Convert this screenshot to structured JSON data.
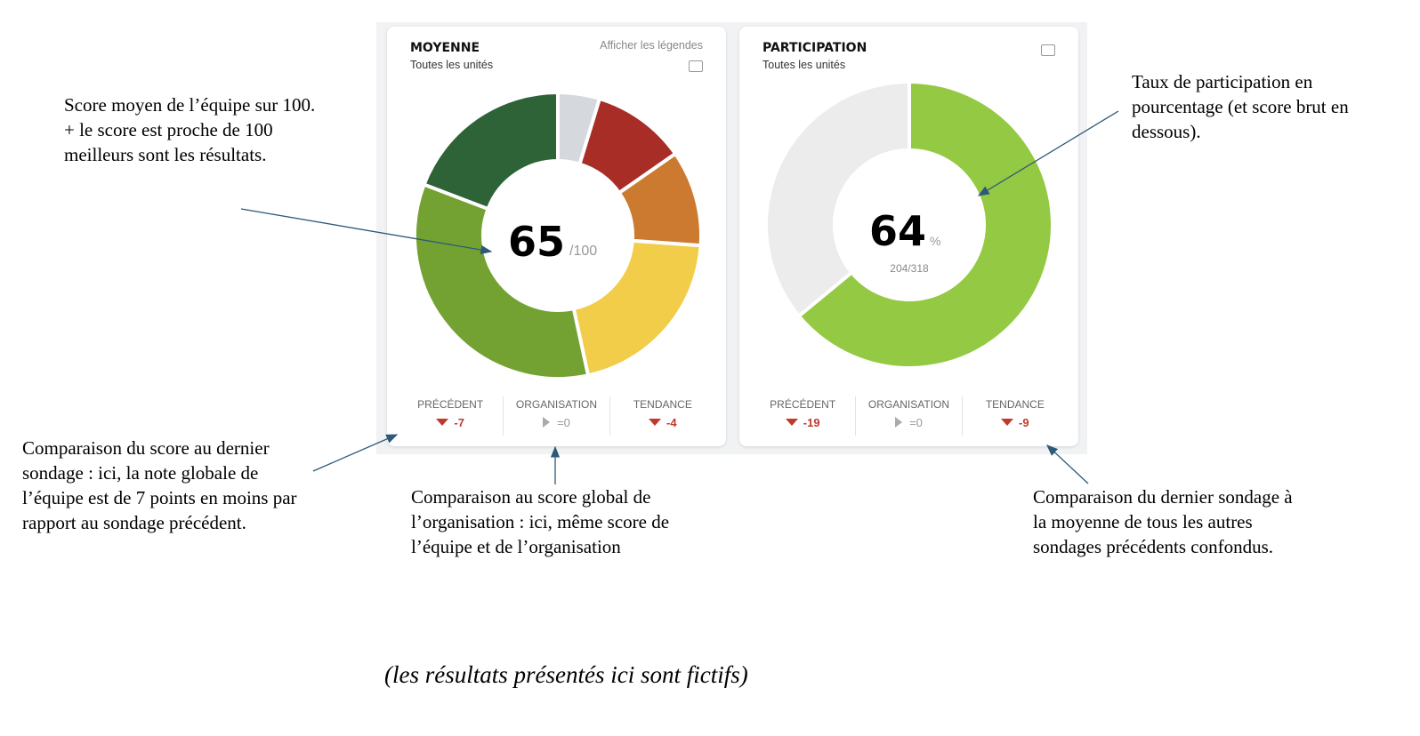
{
  "cards": [
    {
      "title": "MOYENNE",
      "subtitle": "Toutes les unités",
      "legend_link": "Afficher les légendes",
      "icon": "image-icon",
      "score": "65",
      "score_suffix": "/100",
      "stats": [
        {
          "label": "PRÉCÉDENT",
          "value": "-7",
          "trend": "down"
        },
        {
          "label": "ORGANISATION",
          "value": "=0",
          "trend": "neutral"
        },
        {
          "label": "TENDANCE",
          "value": "-4",
          "trend": "down"
        }
      ]
    },
    {
      "title": "PARTICIPATION",
      "subtitle": "Toutes les unités",
      "icon": "image-icon",
      "score": "64",
      "score_suffix": "%",
      "raw": "204/318",
      "stats": [
        {
          "label": "PRÉCÉDENT",
          "value": "-19",
          "trend": "down"
        },
        {
          "label": "ORGANISATION",
          "value": "=0",
          "trend": "neutral"
        },
        {
          "label": "TENDANCE",
          "value": "-9",
          "trend": "down"
        }
      ]
    }
  ],
  "chart_data": [
    {
      "type": "pie",
      "variant": "donut",
      "values": [
        4.7,
        10.6,
        10.8,
        20.5,
        34.2,
        19.2
      ],
      "colors": [
        "#d5d8dc",
        "#a92d27",
        "#cc7a2f",
        "#f2cd4a",
        "#74a232",
        "#2e6337"
      ]
    },
    {
      "type": "pie",
      "variant": "donut",
      "values": [
        64,
        36
      ],
      "colors": [
        "#94c943",
        "#ececec"
      ]
    }
  ],
  "annotations": {
    "score": "Score moyen de l’équipe sur 100.\n+ le score est proche de 100\nmeilleurs sont les résultats.",
    "participation": "Taux de participation en\npourcentage (et score brut en\ndessous).",
    "previous": "Comparaison du score au dernier\nsondage : ici, la note globale de\nl’équipe est de 7 points en moins par\nrapport au sondage précédent.",
    "organisation": "Comparaison au score global de\nl’organisation : ici, même score de\nl’équipe et de l’organisation",
    "trend": "Comparaison du dernier sondage à\nla moyenne de tous les autres\nsondages précédents confondus.",
    "footnote": "(les résultats présentés ici sont fictifs)"
  },
  "arrow_color": "#2c5a78"
}
